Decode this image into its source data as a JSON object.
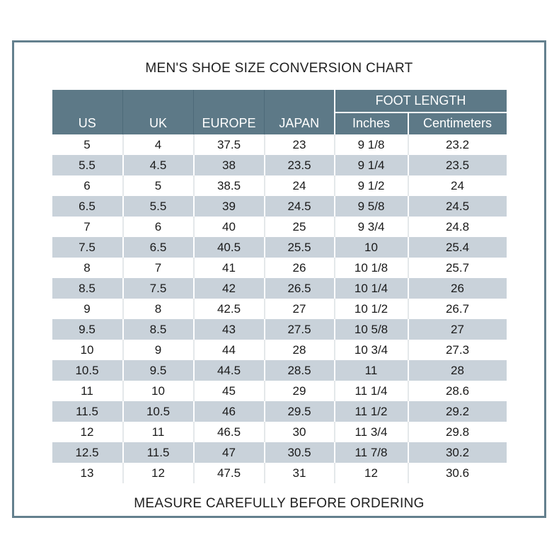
{
  "page": {
    "title": "MEN'S SHOE SIZE CONVERSION CHART",
    "footer": "MEASURE CAREFULLY BEFORE ORDERING"
  },
  "colors": {
    "frame-border": "#64808e",
    "header-bg": "#5d7987",
    "header-divider": "#4d6a79",
    "stripe-bg": "#c9d2da",
    "cell-text": "#1a1a1a"
  },
  "chart_data": {
    "type": "table",
    "title": "MEN'S SHOE SIZE CONVERSION CHART",
    "footer": "MEASURE CAREFULLY BEFORE ORDERING",
    "header": {
      "main_columns": [
        "US",
        "UK",
        "EUROPE",
        "JAPAN"
      ],
      "group": {
        "label": "FOOT LENGTH",
        "sub_columns": [
          "Inches",
          "Centimeters"
        ]
      }
    },
    "columns": [
      "US",
      "UK",
      "EUROPE",
      "JAPAN",
      "Inches",
      "Centimeters"
    ],
    "rows": [
      [
        "5",
        "4",
        "37.5",
        "23",
        "9 1/8",
        "23.2"
      ],
      [
        "5.5",
        "4.5",
        "38",
        "23.5",
        "9 1/4",
        "23.5"
      ],
      [
        "6",
        "5",
        "38.5",
        "24",
        "9 1/2",
        "24"
      ],
      [
        "6.5",
        "5.5",
        "39",
        "24.5",
        "9 5/8",
        "24.5"
      ],
      [
        "7",
        "6",
        "40",
        "25",
        "9 3/4",
        "24.8"
      ],
      [
        "7.5",
        "6.5",
        "40.5",
        "25.5",
        "10",
        "25.4"
      ],
      [
        "8",
        "7",
        "41",
        "26",
        "10 1/8",
        "25.7"
      ],
      [
        "8.5",
        "7.5",
        "42",
        "26.5",
        "10 1/4",
        "26"
      ],
      [
        "9",
        "8",
        "42.5",
        "27",
        "10 1/2",
        "26.7"
      ],
      [
        "9.5",
        "8.5",
        "43",
        "27.5",
        "10 5/8",
        "27"
      ],
      [
        "10",
        "9",
        "44",
        "28",
        "10 3/4",
        "27.3"
      ],
      [
        "10.5",
        "9.5",
        "44.5",
        "28.5",
        "11",
        "28"
      ],
      [
        "11",
        "10",
        "45",
        "29",
        "11 1/4",
        "28.6"
      ],
      [
        "11.5",
        "10.5",
        "46",
        "29.5",
        "11 1/2",
        "29.2"
      ],
      [
        "12",
        "11",
        "46.5",
        "30",
        "11 3/4",
        "29.8"
      ],
      [
        "12.5",
        "11.5",
        "47",
        "30.5",
        "11 7/8",
        "30.2"
      ],
      [
        "13",
        "12",
        "47.5",
        "31",
        "12",
        "30.6"
      ]
    ]
  }
}
